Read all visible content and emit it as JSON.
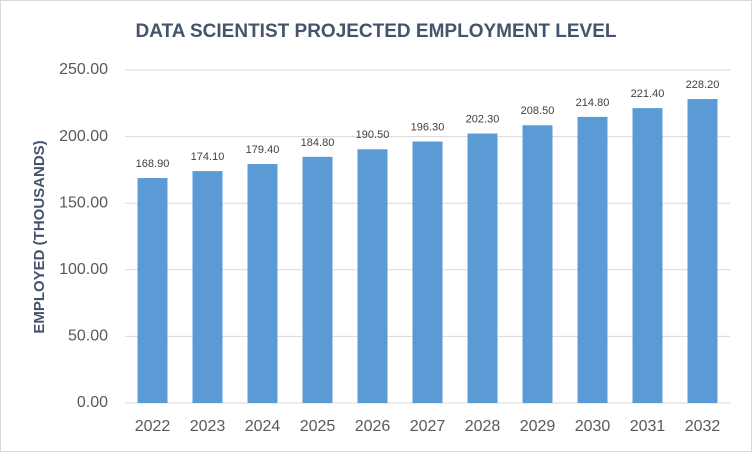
{
  "chart_data": {
    "type": "bar",
    "title": "DATA SCIENTIST PROJECTED EMPLOYMENT LEVEL",
    "y_label": "EMPLOYED (THOUSANDS)",
    "categories": [
      "2022",
      "2023",
      "2024",
      "2025",
      "2026",
      "2027",
      "2028",
      "2029",
      "2030",
      "2031",
      "2032"
    ],
    "values": [
      168.9,
      174.1,
      179.4,
      184.8,
      190.5,
      196.3,
      202.3,
      208.5,
      214.8,
      221.4,
      228.2
    ],
    "value_labels": [
      "168.90",
      "174.10",
      "179.40",
      "184.80",
      "190.50",
      "196.30",
      "202.30",
      "208.50",
      "214.80",
      "221.40",
      "228.20"
    ],
    "color": "#5b9bd5",
    "ylim": [
      0,
      250
    ],
    "yticks": [
      {
        "value": 0,
        "label": "0.00"
      },
      {
        "value": 50,
        "label": "50.00"
      },
      {
        "value": 100,
        "label": "100.00"
      },
      {
        "value": 150,
        "label": "150.00"
      },
      {
        "value": 200,
        "label": "200.00"
      },
      {
        "value": 250,
        "label": "250.00"
      }
    ],
    "grid": true
  }
}
